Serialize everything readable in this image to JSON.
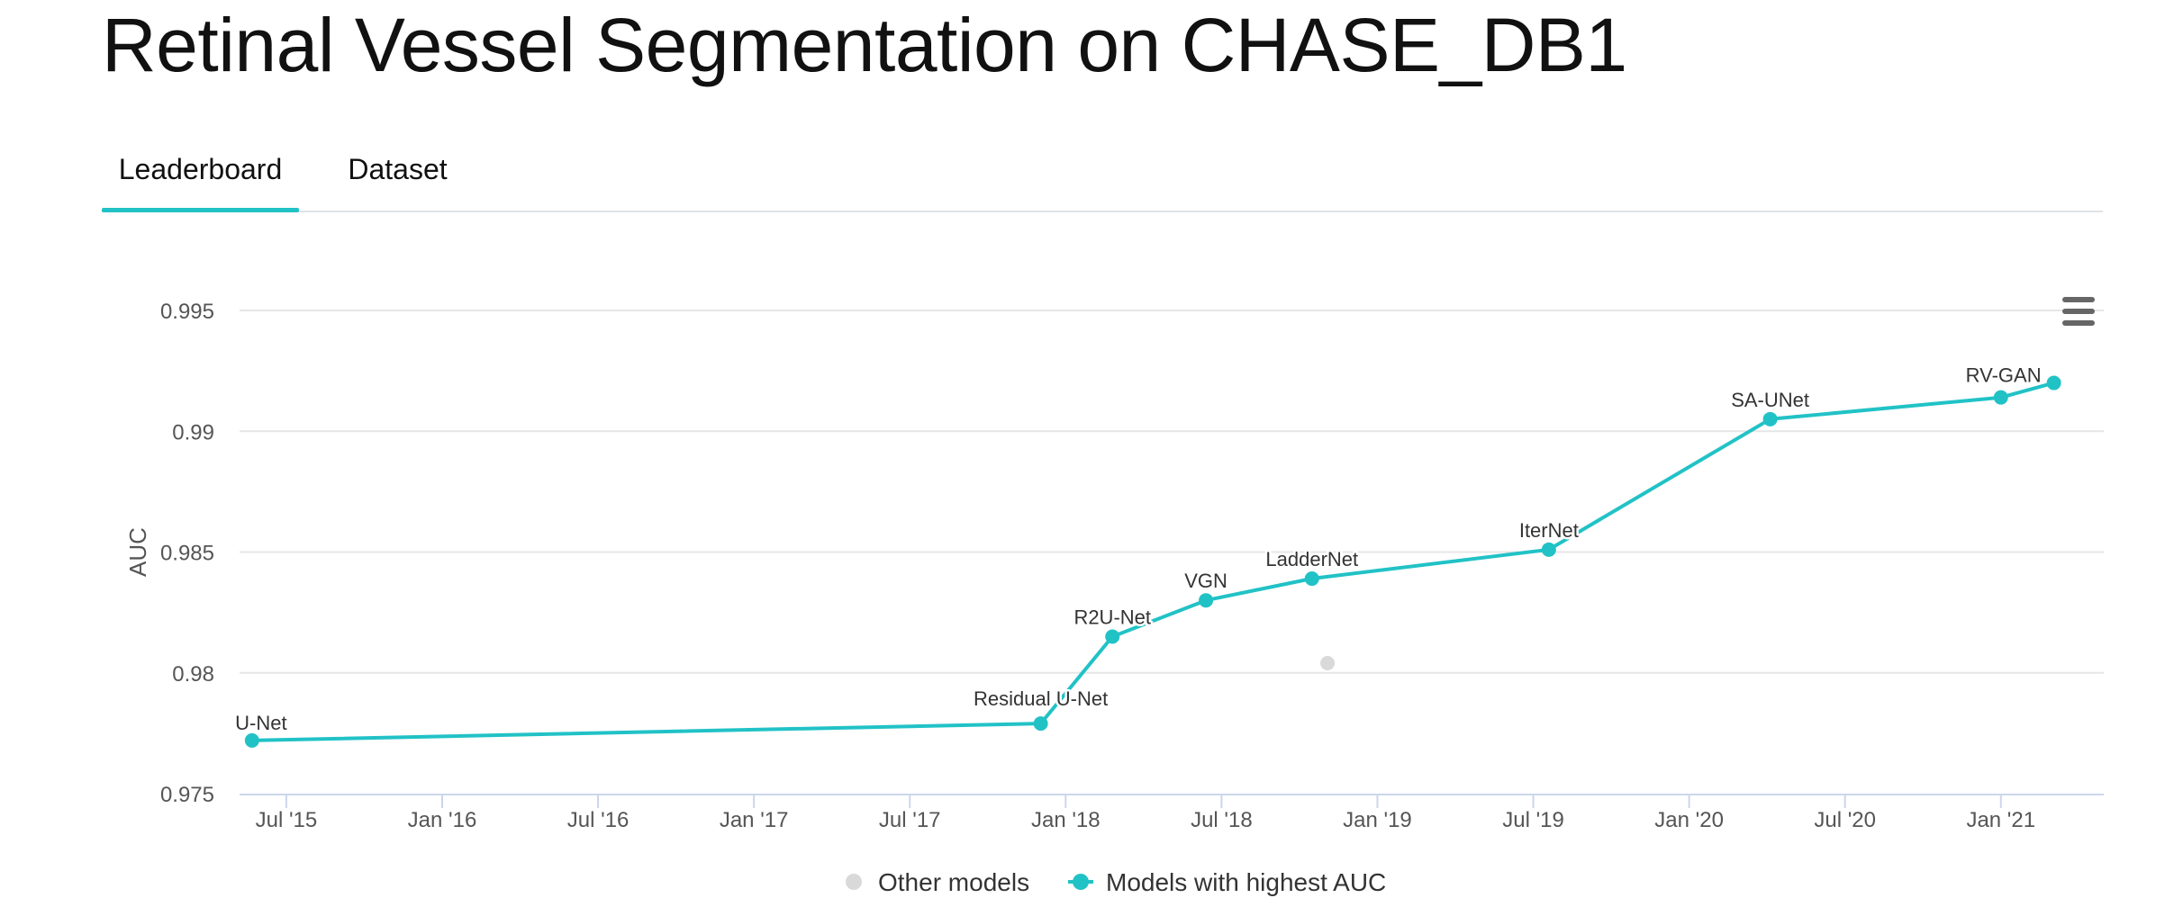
{
  "page": {
    "title": "Retinal Vessel Segmentation on CHASE_DB1"
  },
  "tabs": [
    {
      "label": "Leaderboard",
      "active": true
    },
    {
      "label": "Dataset",
      "active": false
    }
  ],
  "colors": {
    "accent": "#21c2c6",
    "other_models": "#d9d9d9",
    "grid": "#e6e6e6",
    "axis": "#ccd6eb",
    "text": "#333333"
  },
  "chart_data": {
    "type": "line",
    "title": "",
    "ylabel": "AUC",
    "xlabel": "",
    "ylim": [
      0.975,
      0.995
    ],
    "xlim": [
      2015.35,
      2021.33
    ],
    "y_ticks": [
      {
        "value": 0.975,
        "label": "0.975"
      },
      {
        "value": 0.98,
        "label": "0.98"
      },
      {
        "value": 0.985,
        "label": "0.985"
      },
      {
        "value": 0.99,
        "label": "0.99"
      },
      {
        "value": 0.995,
        "label": "0.995"
      }
    ],
    "x_ticks": [
      {
        "value": 2015.5,
        "label": "Jul '15"
      },
      {
        "value": 2016.0,
        "label": "Jan '16"
      },
      {
        "value": 2016.5,
        "label": "Jul '16"
      },
      {
        "value": 2017.0,
        "label": "Jan '17"
      },
      {
        "value": 2017.5,
        "label": "Jul '17"
      },
      {
        "value": 2018.0,
        "label": "Jan '18"
      },
      {
        "value": 2018.5,
        "label": "Jul '18"
      },
      {
        "value": 2019.0,
        "label": "Jan '19"
      },
      {
        "value": 2019.5,
        "label": "Jul '19"
      },
      {
        "value": 2020.0,
        "label": "Jan '20"
      },
      {
        "value": 2020.5,
        "label": "Jul '20"
      },
      {
        "value": 2021.0,
        "label": "Jan '21"
      }
    ],
    "series": [
      {
        "name": "Models with highest AUC",
        "points": [
          {
            "x": 2015.39,
            "y": 0.9772,
            "label": "U-Net"
          },
          {
            "x": 2017.92,
            "y": 0.9779,
            "label": "Residual U-Net"
          },
          {
            "x": 2018.15,
            "y": 0.9815,
            "label": "R2U-Net"
          },
          {
            "x": 2018.45,
            "y": 0.983,
            "label": "VGN"
          },
          {
            "x": 2018.79,
            "y": 0.9839,
            "label": "LadderNet"
          },
          {
            "x": 2019.55,
            "y": 0.9851,
            "label": "IterNet"
          },
          {
            "x": 2020.26,
            "y": 0.9905,
            "label": "SA-UNet"
          },
          {
            "x": 2021.0,
            "y": 0.9914,
            "label": ""
          },
          {
            "x": 2021.17,
            "y": 0.992,
            "label": "RV-GAN"
          }
        ]
      },
      {
        "name": "Other models",
        "points": [
          {
            "x": 2018.84,
            "y": 0.9804,
            "label": ""
          }
        ]
      }
    ],
    "legend": [
      {
        "label": "Other models",
        "key": "other"
      },
      {
        "label": "Models with highest AUC",
        "key": "best"
      }
    ],
    "legend_position": "bottom-center"
  }
}
